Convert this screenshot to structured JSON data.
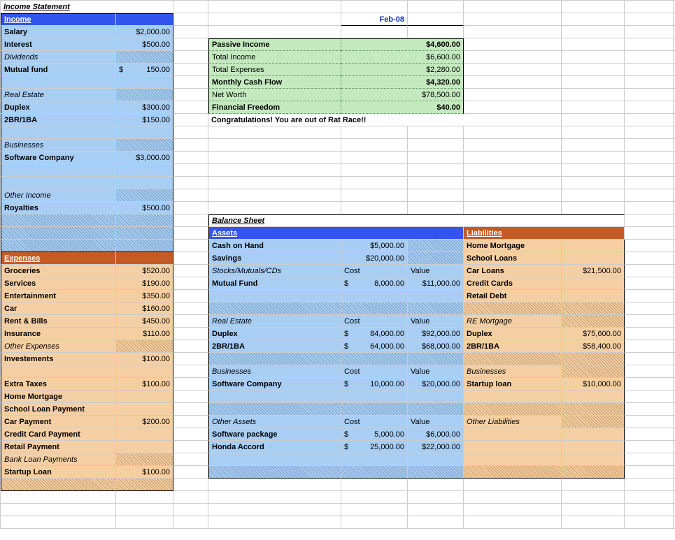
{
  "title": "Income Statement",
  "date": "Feb-08",
  "income": {
    "header": "Income",
    "rows": [
      {
        "label": "Salary",
        "val": "$2,000.00"
      },
      {
        "label": "Interest",
        "val": "$500.00"
      }
    ],
    "dividends_hdr": "Dividends",
    "dividends": [
      {
        "label": "Mutual fund",
        "cur": "$",
        "val": "150.00"
      }
    ],
    "realestate_hdr": "Real Estate",
    "realestate": [
      {
        "label": "Duplex",
        "val": "$300.00"
      },
      {
        "label": "2BR/1BA",
        "val": "$150.00"
      }
    ],
    "biz_hdr": "Businesses",
    "biz": [
      {
        "label": "Software Company",
        "val": "$3,000.00"
      }
    ],
    "other_hdr": "Other Income",
    "other": [
      {
        "label": "Royalties",
        "val": "$500.00"
      }
    ]
  },
  "summary": [
    {
      "label": "Passive Income",
      "val": "$4,600.00",
      "bold": true
    },
    {
      "label": "Total Income",
      "val": "$6,600.00",
      "bold": false
    },
    {
      "label": "Total Expenses",
      "val": "$2,280.00",
      "bold": false
    },
    {
      "label": "Monthly Cash Flow",
      "val": "$4,320.00",
      "bold": true
    },
    {
      "label": "Net Worth",
      "val": "$78,500.00",
      "bold": false
    },
    {
      "label": "Financial Freedom",
      "val": "$40.00",
      "bold": true
    }
  ],
  "congrats": "Congratulations! You are out of Rat Race!!",
  "expenses": {
    "header": "Expenses",
    "rows": [
      {
        "label": "Groceries",
        "val": "$520.00"
      },
      {
        "label": "Services",
        "val": "$190.00"
      },
      {
        "label": "Entertainment",
        "val": "$350.00"
      },
      {
        "label": "Car",
        "val": "$160.00"
      },
      {
        "label": "Rent & Bills",
        "val": "$450.00"
      },
      {
        "label": "Insurance",
        "val": "$110.00"
      }
    ],
    "otherexp_hdr": "Other Expenses",
    "otherexp": [
      {
        "label": "Investements",
        "val": "$100.00"
      },
      {
        "label": "",
        "val": ""
      },
      {
        "label": "Extra Taxes",
        "val": "$100.00"
      },
      {
        "label": "Home Mortgage",
        "val": ""
      },
      {
        "label": "School Loan Payment",
        "val": ""
      },
      {
        "label": "Car Payment",
        "val": "$200.00"
      },
      {
        "label": "Credit Card Payment",
        "val": ""
      },
      {
        "label": "Retail Payment",
        "val": ""
      }
    ],
    "bankloan_hdr": "Bank Loan Payments",
    "bankloan": [
      {
        "label": "Startup Loan",
        "val": "$100.00"
      }
    ]
  },
  "balance": {
    "title": "Balance Sheet",
    "assets_hdr": "Assets",
    "liab_hdr": "Liabilities",
    "cost_lbl": "Cost",
    "val_lbl": "Value",
    "top_assets": [
      {
        "label": "Cash on Hand",
        "val": "$5,000.00"
      },
      {
        "label": "Savings",
        "val": "$20,000.00"
      }
    ],
    "top_liab": [
      {
        "label": "Home Mortgage",
        "val": ""
      },
      {
        "label": "School Loans",
        "val": ""
      }
    ],
    "stocks_hdr": "Stocks/Mutuals/CDs",
    "stocks": [
      {
        "label": "Mutual Fund",
        "cost": "8,000.00",
        "val": "$11,000.00"
      }
    ],
    "stocks_liab": [
      {
        "label": "Car Loans",
        "val": "$21,500.00"
      },
      {
        "label": "Credit Cards",
        "val": ""
      },
      {
        "label": "Retail Debt",
        "val": ""
      }
    ],
    "re_hdr": "Real Estate",
    "re": [
      {
        "label": "Duplex",
        "cost": "84,000.00",
        "val": "$92,000.00"
      },
      {
        "label": "2BR/1BA",
        "cost": "64,000.00",
        "val": "$68,000.00"
      }
    ],
    "re_liab_hdr": "RE Mortgage",
    "re_liab": [
      {
        "label": "Duplex",
        "val": "$75,600.00"
      },
      {
        "label": "2BR/1BA",
        "val": "$58,400.00"
      }
    ],
    "biz_hdr": "Businesses",
    "biz": [
      {
        "label": "Software Company",
        "cost": "10,000.00",
        "val": "$20,000.00"
      }
    ],
    "biz_liab_hdr": "Businesses",
    "biz_liab": [
      {
        "label": "Startup loan",
        "val": "$10,000.00"
      }
    ],
    "other_hdr": "Other Assets",
    "other": [
      {
        "label": "Software package",
        "cost": "5,000.00",
        "val": "$6,000.00"
      },
      {
        "label": "Honda Accord",
        "cost": "25,000.00",
        "val": "$22,000.00"
      }
    ],
    "other_liab_hdr": "Other Liabilities"
  }
}
